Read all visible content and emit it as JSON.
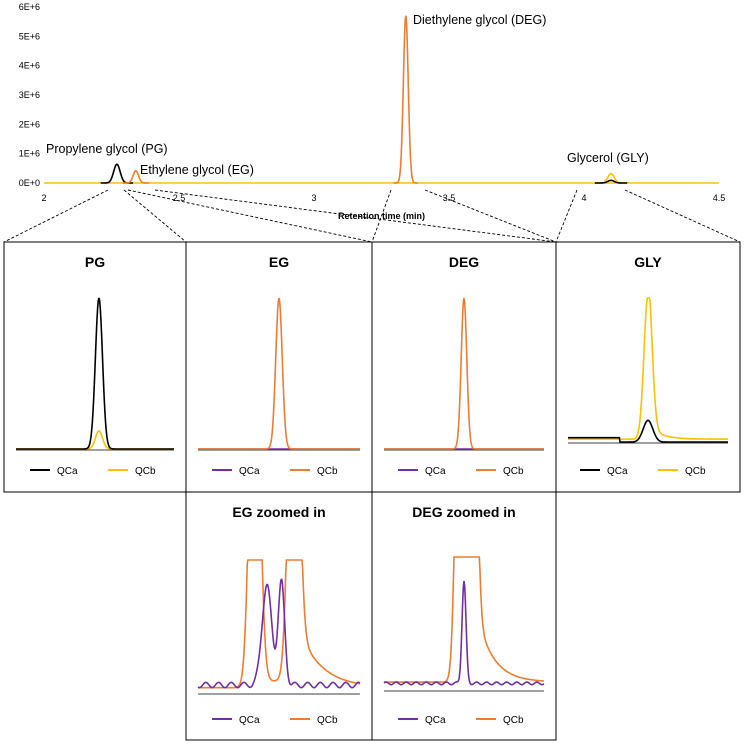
{
  "colors": {
    "QCa": "#000000",
    "QCb": "#ffc000",
    "QCa_alt": "#7030a0",
    "QCb_alt": "#ed7d31"
  },
  "chart_data": [
    {
      "type": "line",
      "xlabel": "Retention time (min)",
      "ylabel": "",
      "xlim": [
        2,
        4.5
      ],
      "ylim": [
        0,
        6000000
      ],
      "x_ticks": [
        "2",
        "2.5",
        "3",
        "3.5",
        "4",
        "4.5"
      ],
      "y_ticks": [
        "0E+0",
        "1E+6",
        "2E+6",
        "3E+6",
        "4E+6",
        "5E+6",
        "6E+6"
      ],
      "annotations": [
        {
          "text": "Propylene glycol (PG)",
          "x": 2.27
        },
        {
          "text": "Ethylene glycol (EG)",
          "x": 2.34
        },
        {
          "text": "Diethylene glycol (DEG)",
          "x": 3.34
        },
        {
          "text": "Glycerol (GLY)",
          "x": 4.1
        }
      ],
      "peaks": [
        {
          "compound": "PG",
          "x": 2.27,
          "y": 640000,
          "color": "black"
        },
        {
          "compound": "EG",
          "x": 2.34,
          "y": 420000,
          "color": "orange"
        },
        {
          "compound": "DEG",
          "x": 3.34,
          "y": 5700000,
          "color": "orange"
        },
        {
          "compound": "GLY",
          "x": 4.1,
          "y": 320000,
          "color": "yellow"
        },
        {
          "compound": "GLY",
          "x": 4.1,
          "y": 90000,
          "color": "black"
        }
      ]
    },
    {
      "type": "line",
      "title": "PG",
      "legend": [
        "QCa",
        "QCb"
      ],
      "series": [
        {
          "name": "QCa",
          "color": "black",
          "peak_height": 1.0
        },
        {
          "name": "QCb",
          "color": "yellow",
          "peak_height": 0.12
        }
      ]
    },
    {
      "type": "line",
      "title": "EG",
      "legend": [
        "QCa",
        "QCb"
      ],
      "series": [
        {
          "name": "QCa",
          "color": "purple",
          "peak_height": 0.0
        },
        {
          "name": "QCb",
          "color": "orange",
          "peak_height": 1.0
        }
      ]
    },
    {
      "type": "line",
      "title": "DEG",
      "legend": [
        "QCa",
        "QCb"
      ],
      "series": [
        {
          "name": "QCa",
          "color": "purple",
          "peak_height": 0.0
        },
        {
          "name": "QCb",
          "color": "orange",
          "peak_height": 1.0
        }
      ]
    },
    {
      "type": "line",
      "title": "GLY",
      "legend": [
        "QCa",
        "QCb"
      ],
      "series": [
        {
          "name": "QCa",
          "color": "black",
          "peak_height": 0.15
        },
        {
          "name": "QCb",
          "color": "yellow",
          "peak_height": 1.0
        }
      ]
    },
    {
      "type": "line",
      "title": "EG zoomed in",
      "legend": [
        "QCa",
        "QCb"
      ],
      "series": [
        {
          "name": "QCa",
          "color": "purple",
          "peaks": [
            0.75,
            0.77
          ]
        },
        {
          "name": "QCb",
          "color": "orange",
          "peaks": [
            1.0,
            1.0
          ]
        }
      ]
    },
    {
      "type": "line",
      "title": "DEG zoomed in",
      "legend": [
        "QCa",
        "QCb"
      ],
      "series": [
        {
          "name": "QCa",
          "color": "purple",
          "peak_height": 0.77
        },
        {
          "name": "QCb",
          "color": "orange",
          "peak_height": 1.0
        }
      ]
    }
  ]
}
